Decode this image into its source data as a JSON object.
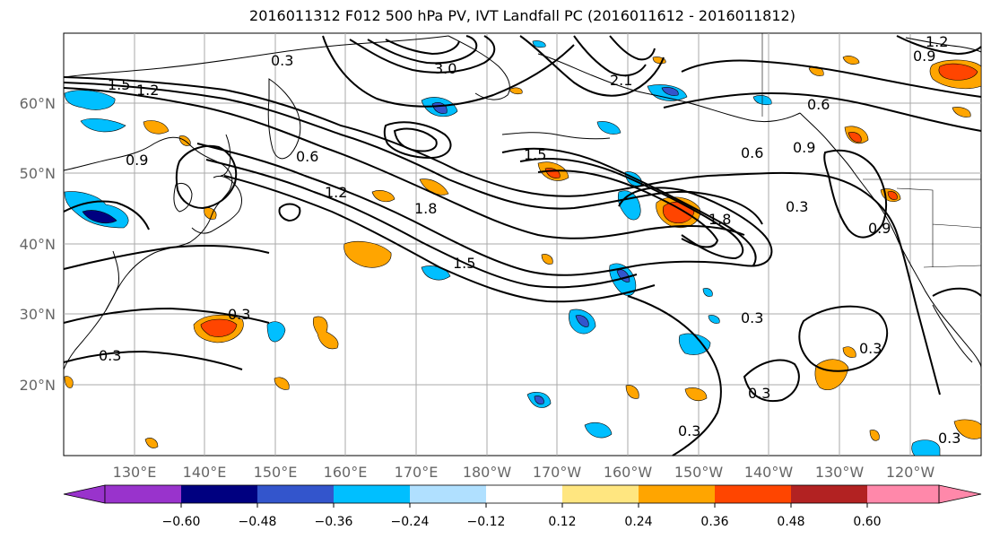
{
  "title": "2016011312 F012 500 hPa PV, IVT Landfall PC (2016011612 - 2016011812)",
  "lon_ticks": [
    "130°E",
    "140°E",
    "150°E",
    "160°E",
    "170°E",
    "180°W",
    "170°W",
    "160°W",
    "150°W",
    "140°W",
    "130°W",
    "120°W"
  ],
  "lat_ticks": [
    "60°N",
    "50°N",
    "40°N",
    "30°N",
    "20°N"
  ],
  "colorbar": {
    "ticks": [
      "−0.60",
      "−0.48",
      "−0.36",
      "−0.24",
      "−0.12",
      "0.12",
      "0.24",
      "0.36",
      "0.48",
      "0.60"
    ],
    "colors": [
      "#9933cc",
      "#000080",
      "#3355cc",
      "#00bfff",
      "#b0e0ff",
      "#ffffff",
      "#ffe680",
      "#ffa500",
      "#ff4500",
      "#b22222",
      "#ff88aa"
    ]
  },
  "contour_labels": [
    "0.3",
    "3.0",
    "2.1",
    "1.5",
    "1.2",
    "0.6",
    "0.9",
    "1.8",
    "1.5",
    "1.2",
    "0.6",
    "0.9",
    "0.3",
    "0.3",
    "0.3",
    "0.3",
    "0.3",
    "0.3",
    "0.3",
    "0.3",
    "1.2",
    "0.9",
    "0.9",
    "0.6",
    "1.5",
    "1.8"
  ]
}
